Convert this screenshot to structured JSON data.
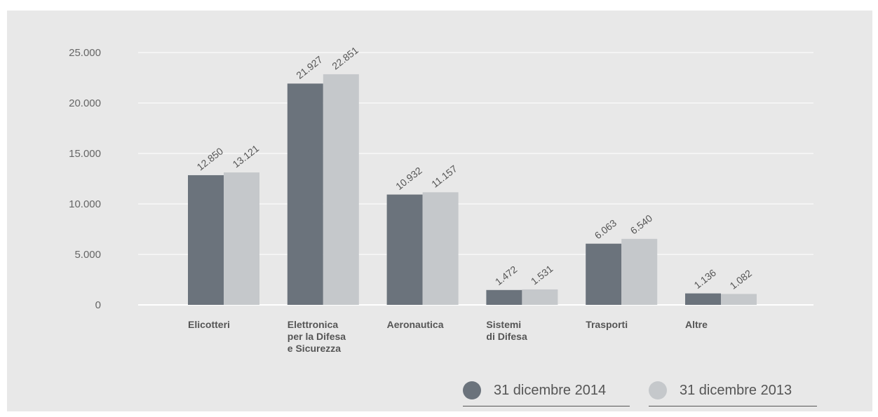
{
  "colors": {
    "series_2014": "#6b737c",
    "series_2013": "#c5c8cb",
    "grid": "#ffffff",
    "text": "#555555"
  },
  "chart_data": {
    "type": "bar",
    "categories": [
      [
        "Elicotteri"
      ],
      [
        "Elettronica",
        "per la Difesa",
        "e Sicurezza"
      ],
      [
        "Aeronautica"
      ],
      [
        "Sistemi",
        "di Difesa"
      ],
      [
        "Trasporti"
      ],
      [
        "Altre"
      ]
    ],
    "series": [
      {
        "name": "31 dicembre 2014",
        "values": [
          12850,
          21927,
          10932,
          1472,
          6063,
          1136
        ],
        "labels": [
          "12.850",
          "21.927",
          "10.932",
          "1.472",
          "6.063",
          "1.136"
        ]
      },
      {
        "name": "31 dicembre 2013",
        "values": [
          13121,
          22851,
          11157,
          1531,
          6540,
          1082
        ],
        "labels": [
          "13.121",
          "22.851",
          "11.157",
          "1.531",
          "6.540",
          "1.082"
        ]
      }
    ],
    "yticks": [
      0,
      5000,
      10000,
      15000,
      20000,
      25000
    ],
    "ytick_labels": [
      "0",
      "5.000",
      "10.000",
      "15.000",
      "20.000",
      "25.000"
    ],
    "ylim": [
      0,
      25000
    ],
    "grid": true,
    "legend_position": "bottom-right"
  }
}
